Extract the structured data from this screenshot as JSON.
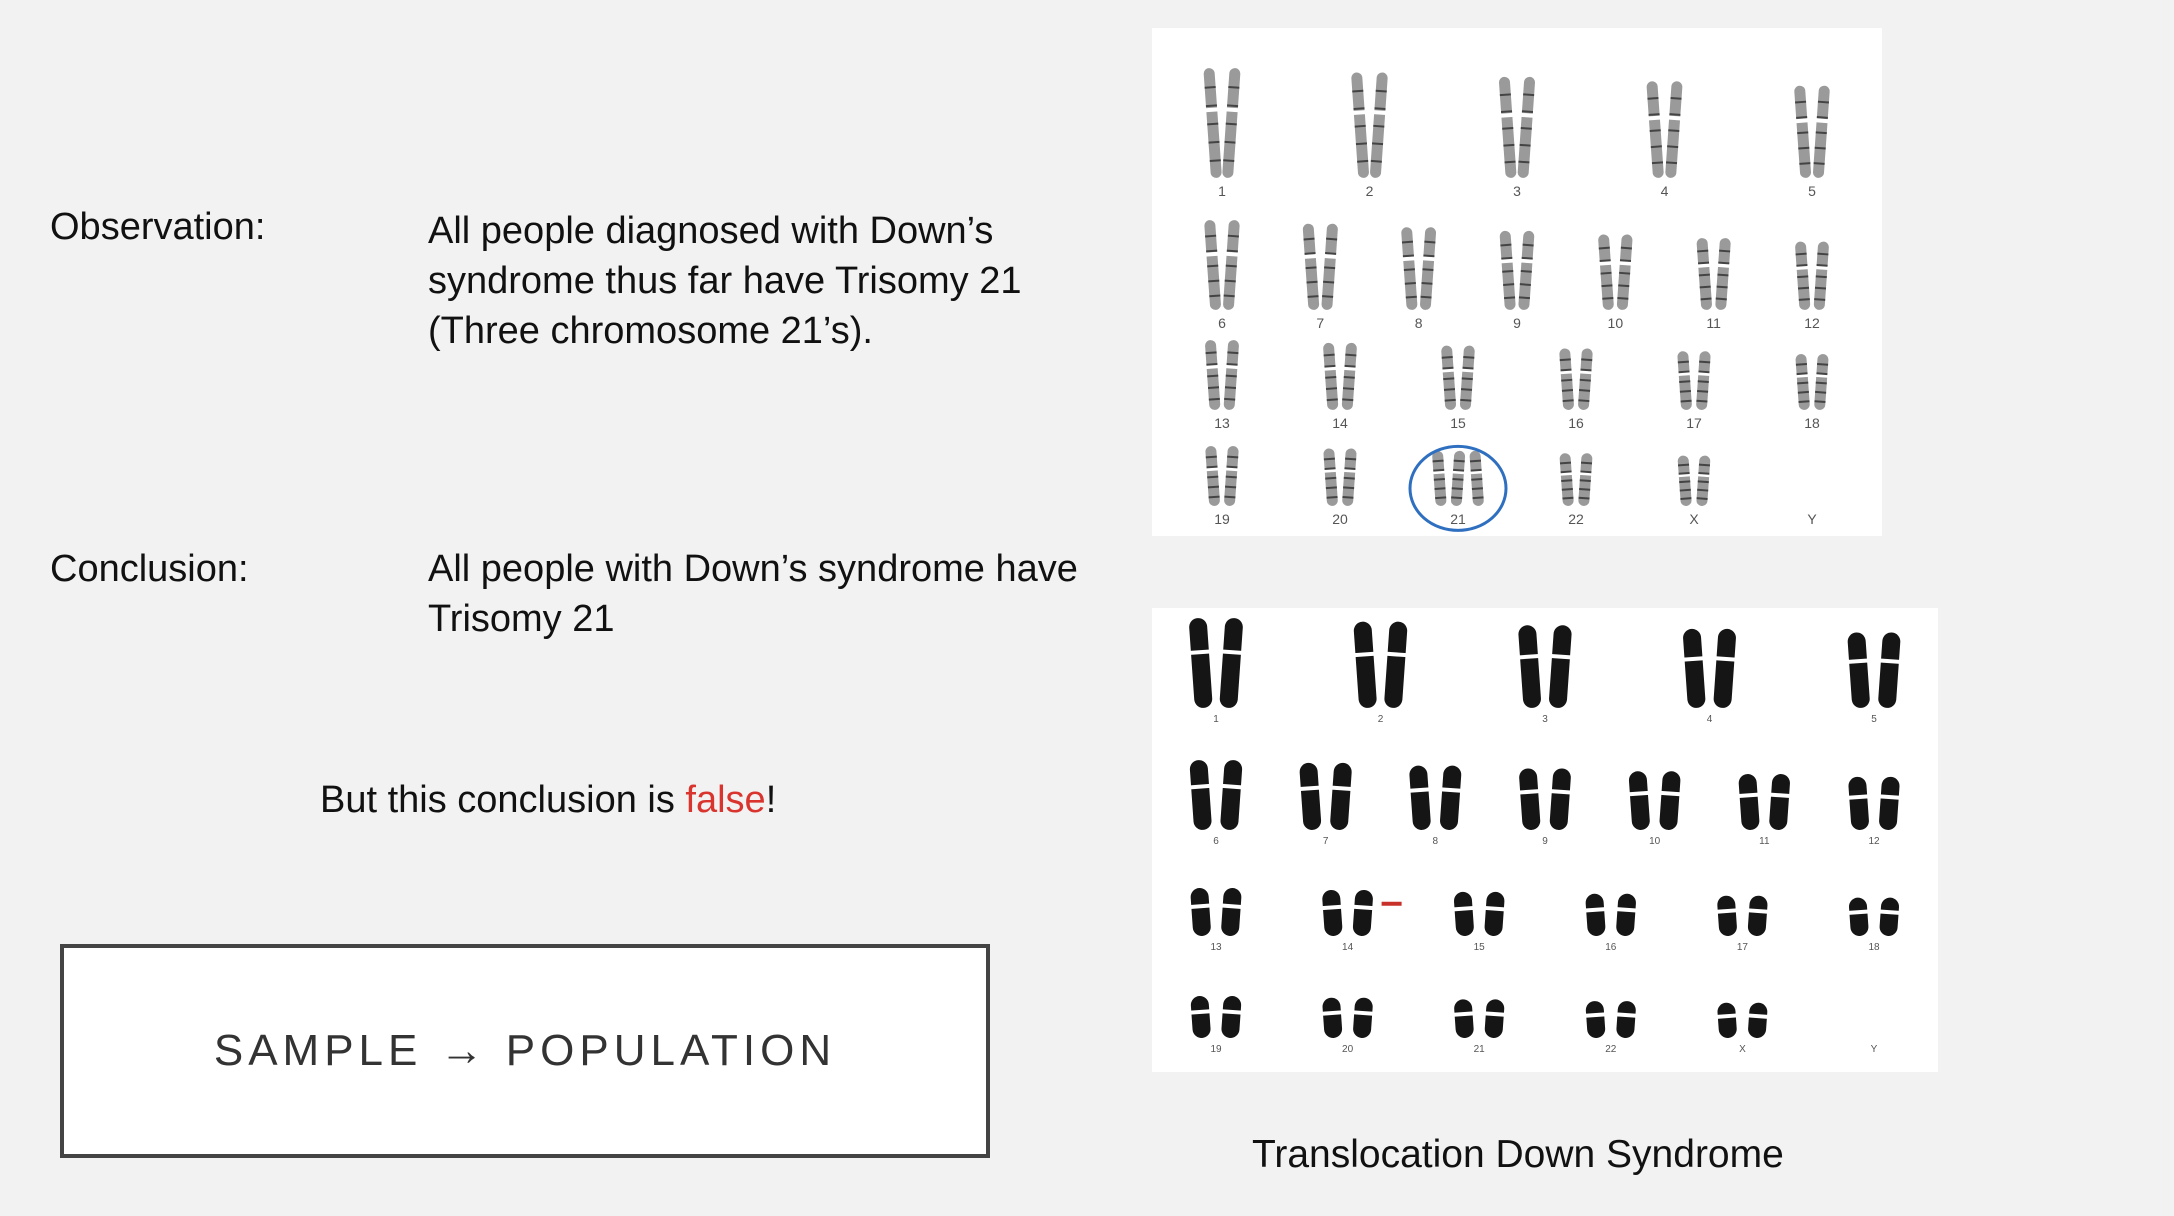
{
  "observation": {
    "label": "Observation:",
    "lines": [
      "All people diagnosed with Down’s",
      "syndrome thus far have Trisomy 21",
      "(Three chromosome 21’s)."
    ]
  },
  "conclusion": {
    "label": "Conclusion:",
    "lines": [
      "All people with Down’s syndrome have",
      "Trisomy 21"
    ]
  },
  "rebuttal": {
    "prefix": "But this conclusion is ",
    "highlight": "false",
    "suffix": "!",
    "highlight_color": "#d9352e"
  },
  "sample_box": {
    "text": "SAMPLE → POPULATION"
  },
  "karyotype_normal": {
    "rows": [
      [
        "1",
        "2",
        "3",
        "4",
        "5"
      ],
      [
        "6",
        "7",
        "8",
        "9",
        "10",
        "11",
        "12"
      ],
      [
        "13",
        "14",
        "15",
        "16",
        "17",
        "18"
      ],
      [
        "19",
        "20",
        "21",
        "22",
        "X",
        "Y"
      ]
    ],
    "highlighted": "21",
    "highlight_color": "#2f6fc0"
  },
  "karyotype_translocation": {
    "rows": [
      [
        "1",
        "2",
        "3",
        "4",
        "5"
      ],
      [
        "6",
        "7",
        "8",
        "9",
        "10",
        "11",
        "12"
      ],
      [
        "13",
        "14",
        "15",
        "16",
        "17",
        "18"
      ],
      [
        "19",
        "20",
        "21",
        "22",
        "X",
        "Y"
      ]
    ],
    "arrow_at": "14",
    "arrow_color": "#c8302a"
  },
  "caption": "Translocation Down Syndrome"
}
